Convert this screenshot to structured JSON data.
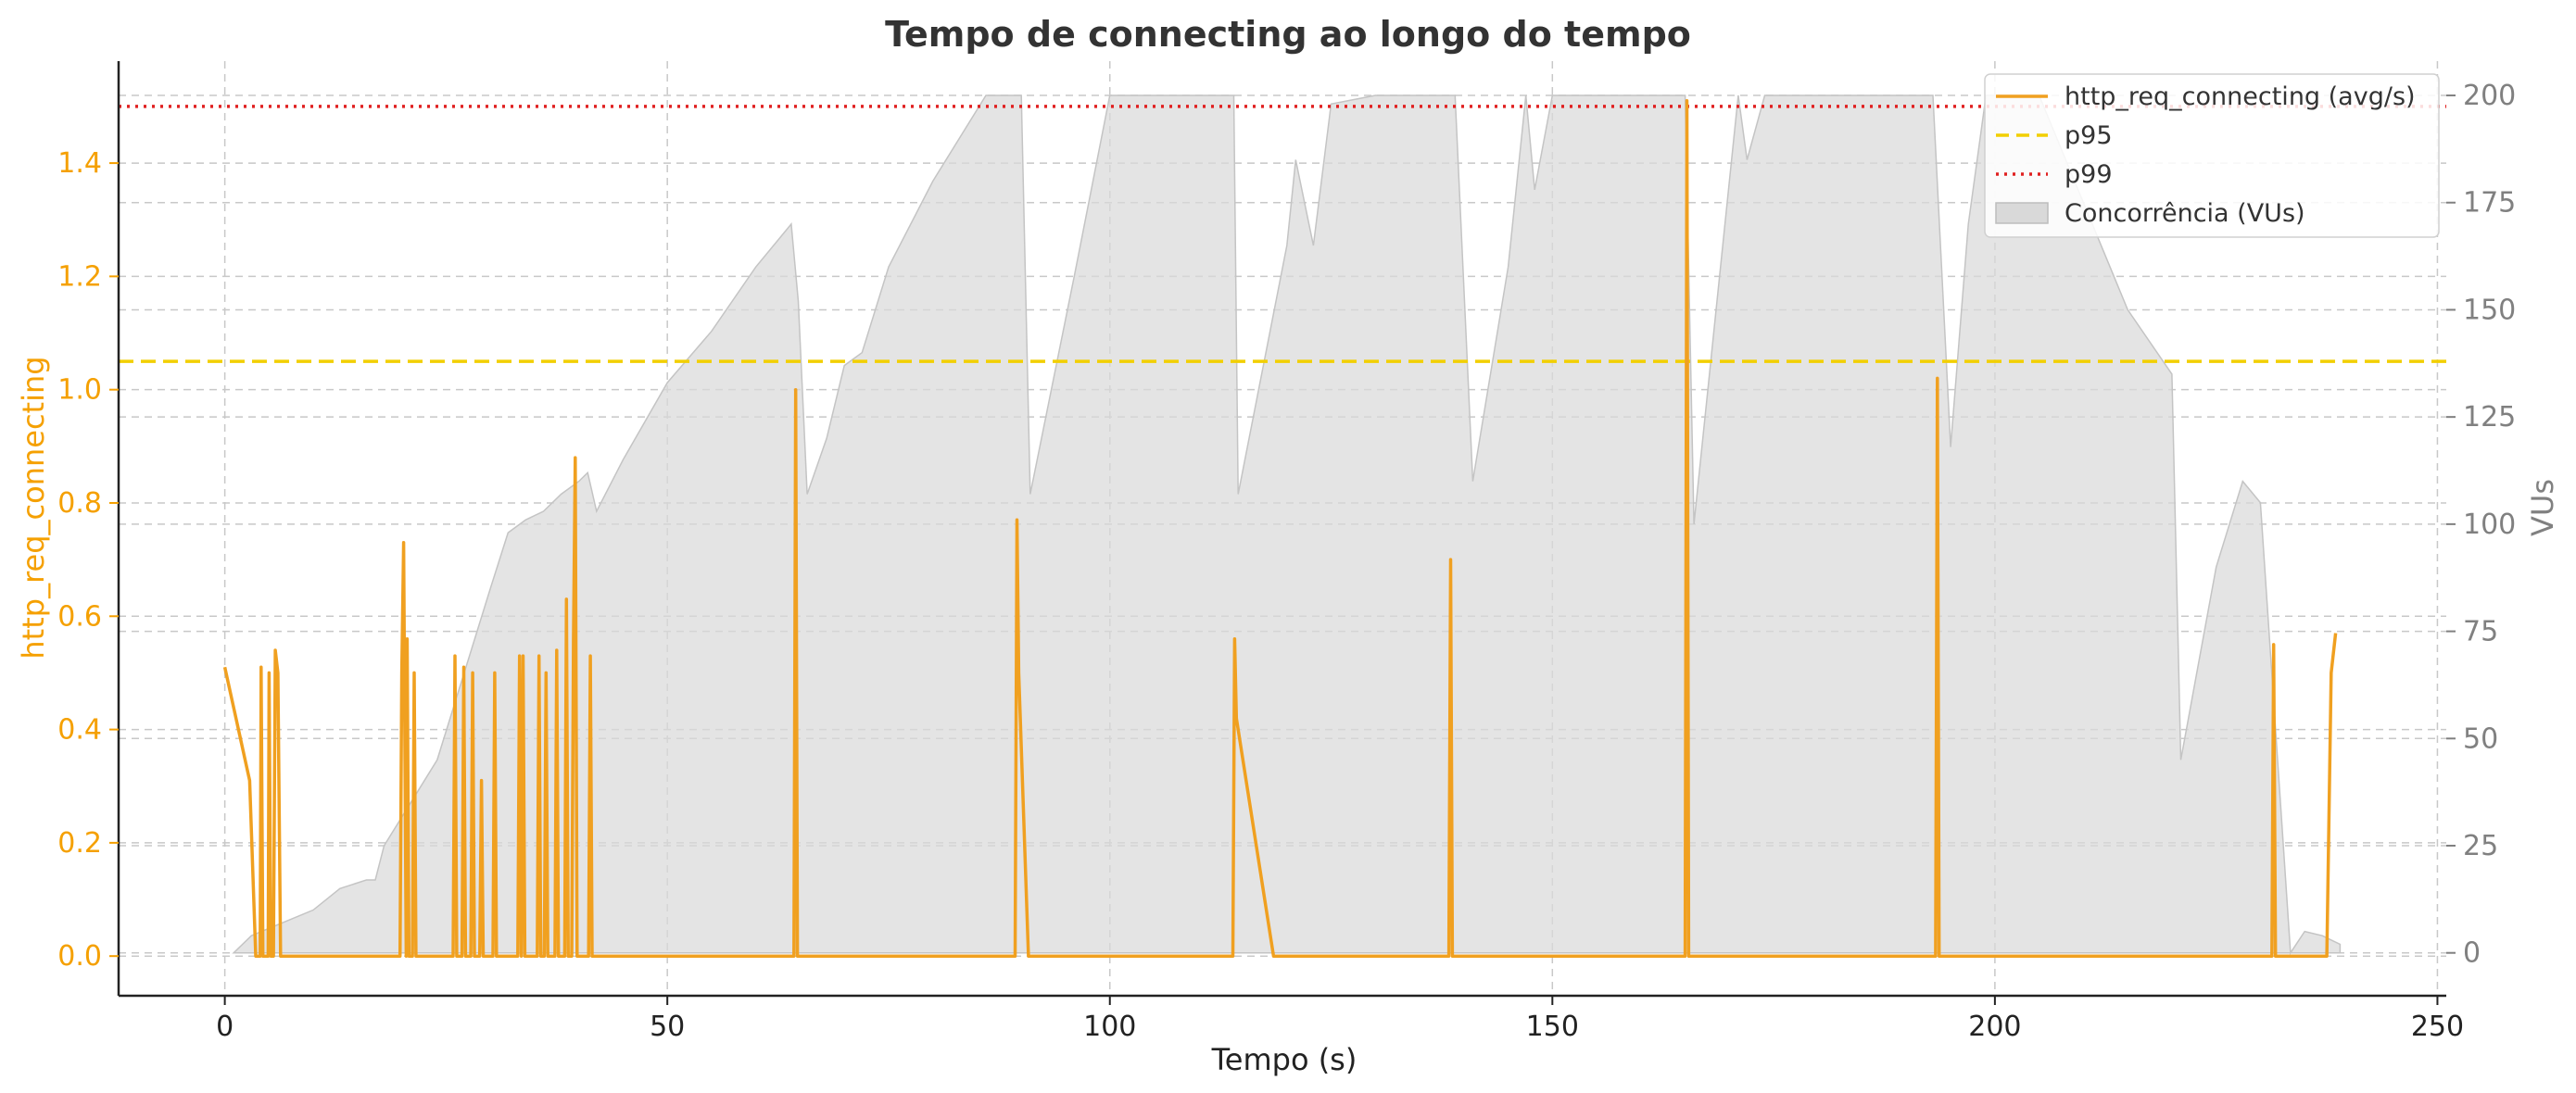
{
  "chart_data": {
    "type": "line",
    "title": "Tempo de connecting ao longo do tempo",
    "xlabel": "Tempo (s)",
    "ylabel": "http_req_connecting",
    "y2label": "VUs",
    "xlim": [
      -12,
      251
    ],
    "ylim": [
      -0.07,
      1.58
    ],
    "y2lim": [
      -10,
      208
    ],
    "x_ticks": [
      0,
      50,
      100,
      150,
      200,
      250
    ],
    "y_ticks": [
      0.0,
      0.2,
      0.4,
      0.6,
      0.8,
      1.0,
      1.2,
      1.4
    ],
    "y2_ticks": [
      0,
      25,
      50,
      75,
      100,
      125,
      150,
      175,
      200
    ],
    "grid": true,
    "legend_position": "top-right",
    "colors": {
      "line": "#f0a020",
      "left_axis": "#f5a000",
      "right_axis": "#808080",
      "p95": "#f2cf00",
      "p99": "#e02020",
      "area": "#d9d9d9"
    },
    "legend": [
      {
        "label": "http_req_connecting (avg/s)",
        "style": "line"
      },
      {
        "label": "p95",
        "style": "dashed"
      },
      {
        "label": "p99",
        "style": "dotted"
      },
      {
        "label": "Concorrência (VUs)",
        "style": "area"
      }
    ],
    "thresholds": {
      "p95": 1.05,
      "p99": 1.5
    },
    "series": [
      {
        "name": "http_req_connecting (avg/s)",
        "axis": "left",
        "points": [
          [
            0,
            0.51
          ],
          [
            2.8,
            0.31
          ],
          [
            3.5,
            0.0
          ],
          [
            4.0,
            0.0
          ],
          [
            4.1,
            0.51
          ],
          [
            4.3,
            0.0
          ],
          [
            4.9,
            0.0
          ],
          [
            5.0,
            0.5
          ],
          [
            5.2,
            0.0
          ],
          [
            5.5,
            0.0
          ],
          [
            5.7,
            0.54
          ],
          [
            6.0,
            0.5
          ],
          [
            6.3,
            0.0
          ],
          [
            19.8,
            0.0
          ],
          [
            20.0,
            0.5
          ],
          [
            20.2,
            0.73
          ],
          [
            20.5,
            0.0
          ],
          [
            20.6,
            0.56
          ],
          [
            20.8,
            0.0
          ],
          [
            21.2,
            0.0
          ],
          [
            21.4,
            0.5
          ],
          [
            21.6,
            0.0
          ],
          [
            25.8,
            0.0
          ],
          [
            26.0,
            0.53
          ],
          [
            26.2,
            0.0
          ],
          [
            26.8,
            0.0
          ],
          [
            27.0,
            0.51
          ],
          [
            27.2,
            0.0
          ],
          [
            27.8,
            0.0
          ],
          [
            28.0,
            0.5
          ],
          [
            28.2,
            0.0
          ],
          [
            28.8,
            0.0
          ],
          [
            29.0,
            0.31
          ],
          [
            29.2,
            0.0
          ],
          [
            30.3,
            0.0
          ],
          [
            30.5,
            0.5
          ],
          [
            30.7,
            0.0
          ],
          [
            33.1,
            0.0
          ],
          [
            33.3,
            0.53
          ],
          [
            33.5,
            0.0
          ],
          [
            33.7,
            0.53
          ],
          [
            33.9,
            0.0
          ],
          [
            35.3,
            0.0
          ],
          [
            35.5,
            0.53
          ],
          [
            35.7,
            0.0
          ],
          [
            36.1,
            0.0
          ],
          [
            36.3,
            0.5
          ],
          [
            36.5,
            0.0
          ],
          [
            37.3,
            0.0
          ],
          [
            37.5,
            0.54
          ],
          [
            37.7,
            0.0
          ],
          [
            38.4,
            0.0
          ],
          [
            38.6,
            0.63
          ],
          [
            38.8,
            0.0
          ],
          [
            39.2,
            0.0
          ],
          [
            39.4,
            0.56
          ],
          [
            39.6,
            0.88
          ],
          [
            39.8,
            0.0
          ],
          [
            41.1,
            0.0
          ],
          [
            41.3,
            0.53
          ],
          [
            41.5,
            0.0
          ],
          [
            64.3,
            0.0
          ],
          [
            64.5,
            1.0
          ],
          [
            64.7,
            0.0
          ],
          [
            89.3,
            0.0
          ],
          [
            89.5,
            0.77
          ],
          [
            89.7,
            0.5
          ],
          [
            90.8,
            0.0
          ],
          [
            113.9,
            0.0
          ],
          [
            114.1,
            0.56
          ],
          [
            114.3,
            0.42
          ],
          [
            118.5,
            0.0
          ],
          [
            138.3,
            0.0
          ],
          [
            138.5,
            0.7
          ],
          [
            138.7,
            0.0
          ],
          [
            165.0,
            0.0
          ],
          [
            165.2,
            1.51
          ],
          [
            165.4,
            0.0
          ],
          [
            193.3,
            0.0
          ],
          [
            193.5,
            1.02
          ],
          [
            193.7,
            0.0
          ],
          [
            231.3,
            0.0
          ],
          [
            231.5,
            0.55
          ],
          [
            231.7,
            0.0
          ],
          [
            237.5,
            0.0
          ],
          [
            238.0,
            0.5
          ],
          [
            238.5,
            0.57
          ]
        ]
      },
      {
        "name": "Concorrência (VUs)",
        "axis": "right",
        "points": [
          [
            1,
            0
          ],
          [
            3,
            4
          ],
          [
            10,
            10
          ],
          [
            13,
            15
          ],
          [
            16,
            17
          ],
          [
            17,
            17
          ],
          [
            18,
            25
          ],
          [
            21,
            35
          ],
          [
            24,
            45
          ],
          [
            27,
            65
          ],
          [
            30,
            85
          ],
          [
            32,
            98
          ],
          [
            34,
            101
          ],
          [
            36,
            103
          ],
          [
            38,
            107
          ],
          [
            40,
            110
          ],
          [
            41,
            112
          ],
          [
            42,
            103
          ],
          [
            45,
            115
          ],
          [
            50,
            133
          ],
          [
            55,
            145
          ],
          [
            60,
            160
          ],
          [
            64,
            170
          ],
          [
            64.8,
            152
          ],
          [
            65.8,
            107
          ],
          [
            68,
            120
          ],
          [
            70,
            137
          ],
          [
            72,
            140
          ],
          [
            75,
            160
          ],
          [
            80,
            180
          ],
          [
            86,
            200
          ],
          [
            90,
            200
          ],
          [
            91,
            107
          ],
          [
            96,
            158
          ],
          [
            100,
            200
          ],
          [
            114,
            200
          ],
          [
            114.5,
            107
          ],
          [
            120,
            165
          ],
          [
            121,
            185
          ],
          [
            123,
            165
          ],
          [
            125,
            198
          ],
          [
            130,
            200
          ],
          [
            139,
            200
          ],
          [
            141,
            110
          ],
          [
            145,
            160
          ],
          [
            147,
            200
          ],
          [
            148,
            178
          ],
          [
            150,
            200
          ],
          [
            158,
            200
          ],
          [
            165,
            200
          ],
          [
            166,
            100
          ],
          [
            171,
            200
          ],
          [
            172,
            185
          ],
          [
            174,
            200
          ],
          [
            190,
            200
          ],
          [
            193,
            200
          ],
          [
            195,
            118
          ],
          [
            197,
            170
          ],
          [
            199,
            200
          ],
          [
            205,
            200
          ],
          [
            215,
            150
          ],
          [
            220,
            135
          ],
          [
            221,
            45
          ],
          [
            225,
            90
          ],
          [
            228,
            110
          ],
          [
            230,
            105
          ],
          [
            233.4,
            0
          ],
          [
            235,
            5
          ],
          [
            237,
            4
          ],
          [
            239,
            2
          ],
          [
            239,
            0
          ]
        ]
      }
    ]
  }
}
